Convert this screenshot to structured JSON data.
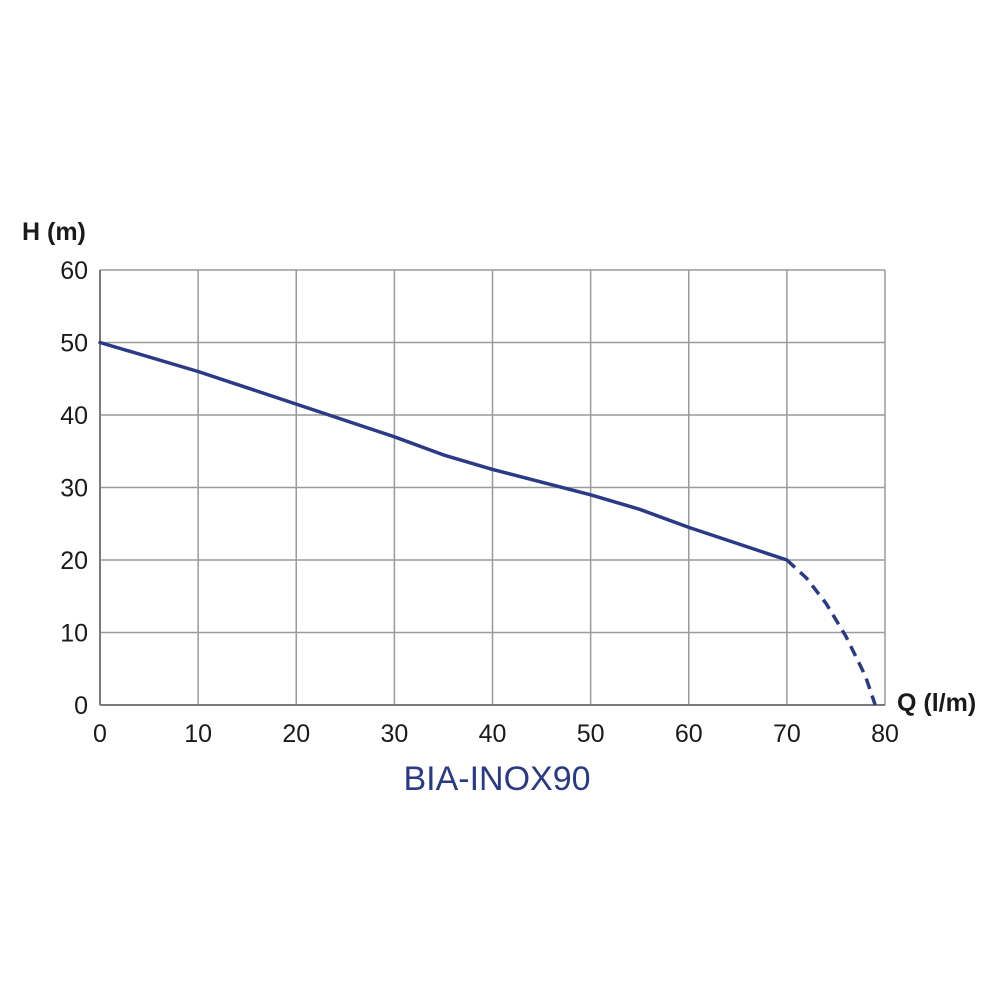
{
  "chart_data": {
    "type": "line",
    "title": "BIA-INOX90",
    "xlabel": "Q (l/m)",
    "ylabel": "H (m)",
    "xlim": [
      0,
      80
    ],
    "ylim": [
      0,
      60
    ],
    "x_ticks": [
      0,
      10,
      20,
      30,
      40,
      50,
      60,
      70,
      80
    ],
    "y_ticks": [
      0,
      10,
      20,
      30,
      40,
      50,
      60
    ],
    "grid": true,
    "series": [
      {
        "style": "solid",
        "color": "#2b3a86",
        "x": [
          0,
          10,
          20,
          30,
          35,
          40,
          50,
          55,
          60,
          70
        ],
        "y": [
          50,
          46,
          41.5,
          37,
          34.5,
          32.5,
          29,
          27,
          24.5,
          20
        ]
      },
      {
        "style": "dashed",
        "color": "#2b3a86",
        "x": [
          70,
          72,
          74,
          76,
          78,
          79
        ],
        "y": [
          20,
          17.5,
          14,
          9.5,
          4,
          0
        ]
      }
    ],
    "colors": {
      "line": "#2b3a86",
      "title": "#2b3a86",
      "grid": "#9a9a9a",
      "text": "#1a1a1a"
    }
  }
}
